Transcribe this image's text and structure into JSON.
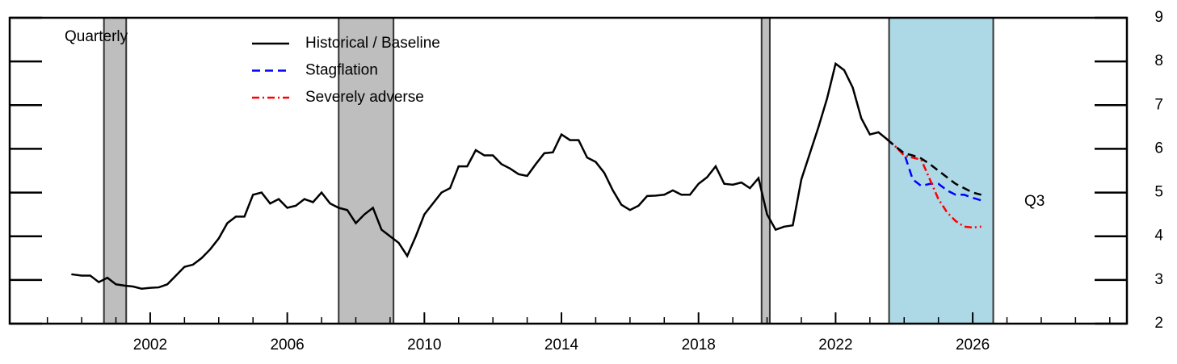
{
  "chart_data": {
    "type": "line",
    "annotations": [
      "Quarterly",
      "Q3"
    ],
    "xlim": [
      1997.9,
      2030.5
    ],
    "xticks": [
      2002,
      2006,
      2010,
      2014,
      2018,
      2022,
      2026
    ],
    "xminorticks": [
      1999,
      2000,
      2001,
      2003,
      2004,
      2005,
      2007,
      2008,
      2009,
      2011,
      2012,
      2013,
      2015,
      2016,
      2017,
      2019,
      2020,
      2021,
      2023,
      2024,
      2025,
      2027,
      2028,
      2029,
      2030
    ],
    "ylim": [
      2,
      9
    ],
    "yticks": [
      2,
      3,
      4,
      5,
      6,
      7,
      8,
      9
    ],
    "y_axis_side": "right",
    "shaded_regions": [
      {
        "x": [
          2000.65,
          2001.3
        ],
        "color": "#bebebe"
      },
      {
        "x": [
          2007.5,
          2009.1
        ],
        "color": "#bebebe"
      },
      {
        "x": [
          2019.84,
          2020.08
        ],
        "color": "#bebebe"
      },
      {
        "x": [
          2023.56,
          2026.6
        ],
        "color": "#add8e6"
      }
    ],
    "series": [
      {
        "name": "Historical / Baseline",
        "color": "#000000",
        "dash": "solid",
        "projection_dash": "dashed",
        "projection_from": 2023.5,
        "x": [
          1999.7,
          2000,
          2000.25,
          2000.5,
          2000.75,
          2001,
          2001.25,
          2001.5,
          2001.75,
          2002,
          2002.25,
          2002.5,
          2002.75,
          2003,
          2003.25,
          2003.5,
          2003.75,
          2004,
          2004.25,
          2004.5,
          2004.75,
          2005,
          2005.25,
          2005.5,
          2005.75,
          2006,
          2006.25,
          2006.5,
          2006.75,
          2007,
          2007.25,
          2007.5,
          2007.75,
          2008,
          2008.25,
          2008.5,
          2008.75,
          2009,
          2009.25,
          2009.5,
          2009.75,
          2010,
          2010.25,
          2010.5,
          2010.75,
          2011,
          2011.25,
          2011.5,
          2011.75,
          2012,
          2012.25,
          2012.5,
          2012.75,
          2013,
          2013.25,
          2013.5,
          2013.75,
          2014,
          2014.25,
          2014.5,
          2014.75,
          2015,
          2015.25,
          2015.5,
          2015.75,
          2016,
          2016.25,
          2016.5,
          2016.75,
          2017,
          2017.25,
          2017.5,
          2017.75,
          2018,
          2018.25,
          2018.5,
          2018.75,
          2019,
          2019.25,
          2019.5,
          2019.75,
          2020,
          2020.25,
          2020.5,
          2020.75,
          2021,
          2021.25,
          2021.5,
          2021.75,
          2022,
          2022.25,
          2022.5,
          2022.75,
          2023,
          2023.25,
          2023.5,
          2023.75,
          2024,
          2024.25,
          2024.5,
          2024.75,
          2025,
          2025.25,
          2025.5,
          2025.75,
          2026,
          2026.25
        ],
        "values": [
          3.13,
          3.1,
          3.1,
          2.95,
          3.05,
          2.9,
          2.87,
          2.85,
          2.8,
          2.82,
          2.83,
          2.9,
          3.1,
          3.3,
          3.35,
          3.5,
          3.7,
          3.95,
          4.3,
          4.45,
          4.45,
          4.95,
          5.0,
          4.75,
          4.85,
          4.65,
          4.7,
          4.85,
          4.78,
          5.0,
          4.75,
          4.65,
          4.6,
          4.3,
          4.5,
          4.65,
          4.15,
          4.0,
          3.85,
          3.55,
          4.0,
          4.5,
          4.75,
          5.0,
          5.1,
          5.6,
          5.6,
          5.97,
          5.85,
          5.85,
          5.65,
          5.55,
          5.42,
          5.38,
          5.65,
          5.9,
          5.92,
          6.33,
          6.2,
          6.2,
          5.8,
          5.7,
          5.45,
          5.05,
          4.72,
          4.6,
          4.7,
          4.92,
          4.93,
          4.95,
          5.05,
          4.95,
          4.95,
          5.2,
          5.35,
          5.6,
          5.2,
          5.18,
          5.23,
          5.1,
          5.33,
          4.5,
          4.15,
          4.22,
          4.25,
          5.3,
          5.9,
          6.5,
          7.15,
          7.95,
          7.8,
          7.4,
          6.7,
          6.33,
          6.38,
          6.22,
          6.05,
          5.9,
          5.85,
          5.78,
          5.65,
          5.5,
          5.35,
          5.2,
          5.1,
          5.0,
          4.95
        ]
      },
      {
        "name": "Stagflation",
        "color": "#0000ff",
        "dash": "dashed",
        "x": [
          2023.5,
          2023.75,
          2024,
          2024.25,
          2024.5,
          2024.75,
          2025,
          2025.25,
          2025.5,
          2025.75,
          2026,
          2026.25
        ],
        "values": [
          6.22,
          6.05,
          5.9,
          5.3,
          5.15,
          5.2,
          5.2,
          5.05,
          4.95,
          4.95,
          4.88,
          4.82
        ]
      },
      {
        "name": "Severely adverse",
        "color": "#ff0000",
        "dash": "dashdot",
        "x": [
          2023.5,
          2023.75,
          2024,
          2024.25,
          2024.5,
          2024.75,
          2025,
          2025.25,
          2025.5,
          2025.75,
          2026,
          2026.25
        ],
        "values": [
          6.22,
          6.05,
          5.85,
          5.8,
          5.75,
          5.3,
          4.85,
          4.55,
          4.35,
          4.22,
          4.2,
          4.22
        ]
      }
    ]
  }
}
